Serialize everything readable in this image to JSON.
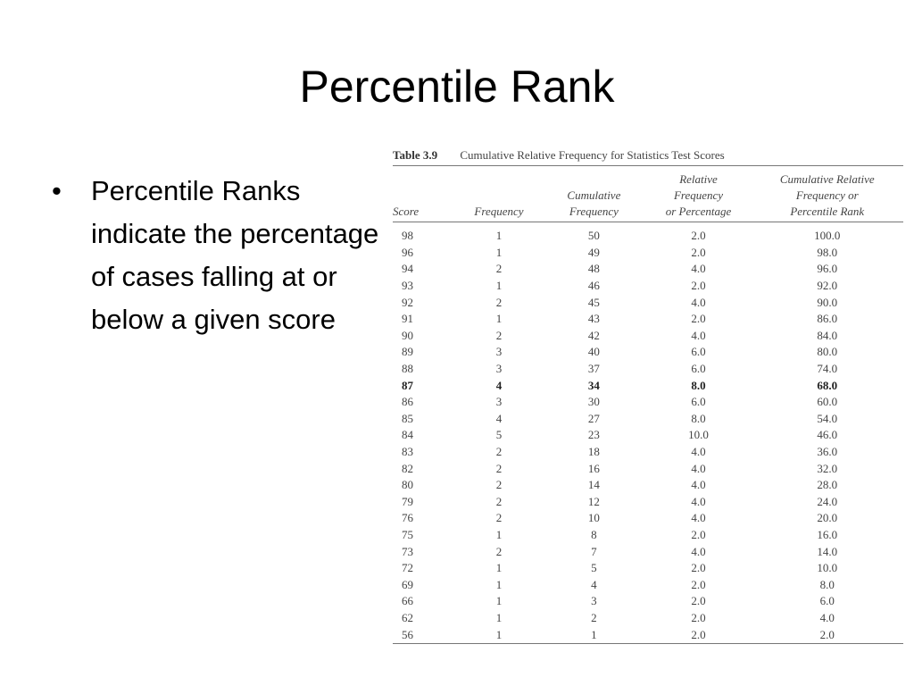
{
  "slide": {
    "title": "Percentile Rank",
    "bullet_symbol": "•",
    "bullet_text": "Percentile Ranks indicate the percentage of cases falling at or below a given score"
  },
  "table": {
    "caption_number": "Table 3.9",
    "caption_text": "Cumulative Relative Frequency for Statistics Test Scores",
    "headers": [
      [
        "Score"
      ],
      [
        "Frequency"
      ],
      [
        "Cumulative",
        "Frequency"
      ],
      [
        "Relative",
        "Frequency",
        "or Percentage"
      ],
      [
        "Cumulative Relative",
        "Frequency or",
        "Percentile Rank"
      ]
    ],
    "highlight_score": "87",
    "rows": [
      [
        "98",
        "1",
        "50",
        "2.0",
        "100.0"
      ],
      [
        "96",
        "1",
        "49",
        "2.0",
        "98.0"
      ],
      [
        "94",
        "2",
        "48",
        "4.0",
        "96.0"
      ],
      [
        "93",
        "1",
        "46",
        "2.0",
        "92.0"
      ],
      [
        "92",
        "2",
        "45",
        "4.0",
        "90.0"
      ],
      [
        "91",
        "1",
        "43",
        "2.0",
        "86.0"
      ],
      [
        "90",
        "2",
        "42",
        "4.0",
        "84.0"
      ],
      [
        "89",
        "3",
        "40",
        "6.0",
        "80.0"
      ],
      [
        "88",
        "3",
        "37",
        "6.0",
        "74.0"
      ],
      [
        "87",
        "4",
        "34",
        "8.0",
        "68.0"
      ],
      [
        "86",
        "3",
        "30",
        "6.0",
        "60.0"
      ],
      [
        "85",
        "4",
        "27",
        "8.0",
        "54.0"
      ],
      [
        "84",
        "5",
        "23",
        "10.0",
        "46.0"
      ],
      [
        "83",
        "2",
        "18",
        "4.0",
        "36.0"
      ],
      [
        "82",
        "2",
        "16",
        "4.0",
        "32.0"
      ],
      [
        "80",
        "2",
        "14",
        "4.0",
        "28.0"
      ],
      [
        "79",
        "2",
        "12",
        "4.0",
        "24.0"
      ],
      [
        "76",
        "2",
        "10",
        "4.0",
        "20.0"
      ],
      [
        "75",
        "1",
        "8",
        "2.0",
        "16.0"
      ],
      [
        "73",
        "2",
        "7",
        "4.0",
        "14.0"
      ],
      [
        "72",
        "1",
        "5",
        "2.0",
        "10.0"
      ],
      [
        "69",
        "1",
        "4",
        "2.0",
        "8.0"
      ],
      [
        "66",
        "1",
        "3",
        "2.0",
        "6.0"
      ],
      [
        "62",
        "1",
        "2",
        "2.0",
        "4.0"
      ],
      [
        "56",
        "1",
        "1",
        "2.0",
        "2.0"
      ]
    ]
  }
}
